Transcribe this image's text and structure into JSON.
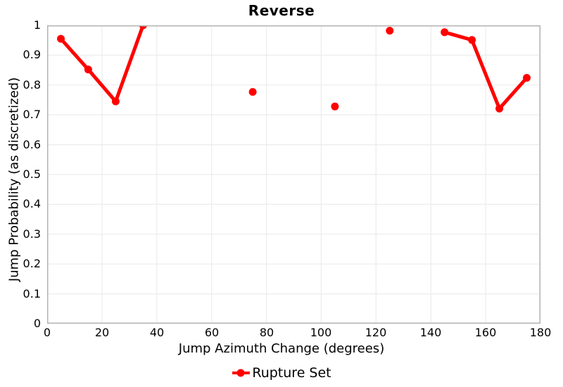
{
  "chart_data": {
    "type": "line",
    "title": "Reverse",
    "xlabel": "Jump Azimuth Change (degrees)",
    "ylabel": "Jump Probability (as discretized)",
    "xlim": [
      0,
      180
    ],
    "ylim": [
      0,
      1
    ],
    "grid": true,
    "legend_position": "bottom",
    "x_ticks": [
      {
        "v": 0,
        "label": "0"
      },
      {
        "v": 20,
        "label": "20"
      },
      {
        "v": 40,
        "label": "40"
      },
      {
        "v": 60,
        "label": "60"
      },
      {
        "v": 80,
        "label": "80"
      },
      {
        "v": 100,
        "label": "100"
      },
      {
        "v": 120,
        "label": "120"
      },
      {
        "v": 140,
        "label": "140"
      },
      {
        "v": 160,
        "label": "160"
      },
      {
        "v": 180,
        "label": "180"
      }
    ],
    "y_ticks": [
      {
        "v": 0,
        "label": "0"
      },
      {
        "v": 0.1,
        "label": "0.1"
      },
      {
        "v": 0.2,
        "label": "0.2"
      },
      {
        "v": 0.3,
        "label": "0.3"
      },
      {
        "v": 0.4,
        "label": "0.4"
      },
      {
        "v": 0.5,
        "label": "0.5"
      },
      {
        "v": 0.6,
        "label": "0.6"
      },
      {
        "v": 0.7,
        "label": "0.7"
      },
      {
        "v": 0.8,
        "label": "0.8"
      },
      {
        "v": 0.9,
        "label": "0.9"
      },
      {
        "v": 1,
        "label": "1"
      }
    ],
    "series": [
      {
        "name": "Rupture Set",
        "color": "#ff0000",
        "marker": "circle",
        "line_width": 5,
        "marker_radius": 5.5,
        "connect_max_dx": 10,
        "points": [
          {
            "x": 5,
            "y": 0.955
          },
          {
            "x": 15,
            "y": 0.852
          },
          {
            "x": 25,
            "y": 0.745
          },
          {
            "x": 35,
            "y": 1.0
          },
          {
            "x": 75,
            "y": 0.777
          },
          {
            "x": 105,
            "y": 0.728
          },
          {
            "x": 125,
            "y": 0.982
          },
          {
            "x": 145,
            "y": 0.977
          },
          {
            "x": 155,
            "y": 0.951
          },
          {
            "x": 165,
            "y": 0.721
          },
          {
            "x": 175,
            "y": 0.824
          }
        ]
      }
    ],
    "style": {
      "background": "#ffffff",
      "grid_color": "#ececec",
      "border_color": "#b3b3b3",
      "text_color": "#000000"
    }
  },
  "legend": {
    "label": "Rupture Set"
  }
}
